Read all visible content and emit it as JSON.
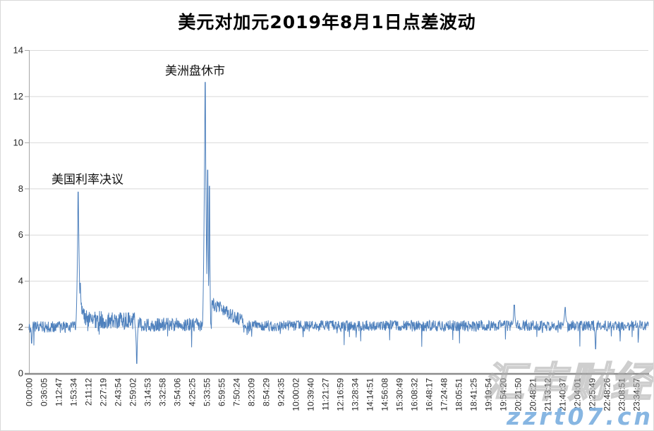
{
  "page": {
    "background": "#ffffff",
    "border_color": "#d9d9d9"
  },
  "chart": {
    "title": "美元对加元2019年8月1日点差波动",
    "annotations": [
      {
        "id": "rate-decision",
        "text": "美国利率决议"
      },
      {
        "id": "us-session-close",
        "text": "美洲盘休市"
      }
    ],
    "colors": {
      "line": "#4f81bd",
      "grid": "#d9d9d9",
      "x_axis": "#8c8c8c",
      "y_axis": "#a6a6a6",
      "tick_label": "#262626",
      "watermark_blue": "#7db0e0"
    }
  },
  "watermarks": {
    "chinese": "汇丰财经",
    "site": "zzrt07.cn"
  },
  "chart_data": {
    "type": "line",
    "title": "美元对加元2019年8月1日点差波动",
    "xlabel": "",
    "ylabel": "",
    "ylim": [
      0,
      14
    ],
    "y_ticks": [
      0,
      2,
      4,
      6,
      8,
      10,
      12,
      14
    ],
    "grid": "horizontal-only",
    "legend": "none",
    "x_ticks": [
      "0:00:00",
      "0:36:05",
      "1:12:47",
      "1:53:34",
      "2:11:12",
      "2:27:19",
      "2:43:54",
      "2:59:02",
      "3:14:53",
      "3:32:58",
      "3:54:06",
      "4:25:25",
      "5:33:55",
      "6:59:55",
      "7:50:24",
      "8:23:09",
      "8:54:29",
      "9:24:35",
      "10:00:02",
      "10:39:40",
      "11:21:27",
      "12:16:59",
      "13:28:34",
      "14:14:51",
      "14:56:08",
      "15:30:49",
      "16:08:32",
      "16:48:17",
      "17:24:48",
      "18:05:51",
      "18:41:25",
      "19:19:54",
      "19:54:20",
      "20:21:50",
      "20:48:21",
      "21:13:12",
      "21:40:37",
      "22:04:01",
      "22:25:49",
      "22:48:26",
      "23:08:51",
      "23:34:57"
    ],
    "series": [
      {
        "name": "点差",
        "color": "#4f81bd"
      }
    ],
    "key_points": [
      {
        "x_time": "1:53",
        "value": 7.85,
        "note": "美国利率决议 spike"
      },
      {
        "x_time": "2:59",
        "value": 0.4,
        "note": "brief dip"
      },
      {
        "x_time": "5:33",
        "value": 12.6,
        "note": "美洲盘休市 main spike"
      },
      {
        "x_time": "5:36",
        "value": 8.8,
        "note": "secondary spike"
      },
      {
        "x_time": "5:38",
        "value": 8.1,
        "note": "tertiary spike"
      },
      {
        "x_time": "20:21",
        "value": 2.95,
        "note": "minor bump"
      },
      {
        "x_time": "22:04",
        "value": 2.85,
        "note": "minor bump"
      },
      {
        "x_time": "baseline",
        "value": 2.0,
        "note": "typical spread ~1.8-2.3 all day"
      }
    ],
    "baseline_segments": [
      {
        "from": 0.0,
        "to": 0.079,
        "mean_start": 2.0,
        "mean_end": 2.0,
        "band": 0.5,
        "dip_prob": 0.02,
        "dip_depth": 0.5
      },
      {
        "from": 0.079,
        "to": 0.09,
        "mean_start": 3.2,
        "mean_end": 2.6,
        "band": 0.7,
        "dip_prob": 0.02,
        "dip_depth": 0.4
      },
      {
        "from": 0.09,
        "to": 0.173,
        "mean_start": 2.35,
        "mean_end": 2.25,
        "band": 0.75,
        "dip_prob": 0.03,
        "dip_depth": 0.55
      },
      {
        "from": 0.173,
        "to": 0.28,
        "mean_start": 2.1,
        "mean_end": 2.1,
        "band": 0.6,
        "dip_prob": 0.03,
        "dip_depth": 0.5
      },
      {
        "from": 0.28,
        "to": 0.295,
        "mean_start": 2.3,
        "mean_end": 2.3,
        "band": 0.7,
        "dip_prob": 0.02,
        "dip_depth": 0.4
      },
      {
        "from": 0.295,
        "to": 0.35,
        "mean_start": 3.0,
        "mean_end": 2.15,
        "band": 0.6,
        "dip_prob": 0.02,
        "dip_depth": 0.4
      },
      {
        "from": 0.35,
        "to": 1.001,
        "mean_start": 2.05,
        "mean_end": 2.05,
        "band": 0.48,
        "dip_prob": 0.025,
        "dip_depth": 0.45
      }
    ],
    "spikes": [
      {
        "at": 0.0797,
        "value": 7.85,
        "width": 0.0042,
        "direction": "up"
      },
      {
        "at": 0.083,
        "value": 3.9,
        "width": 0.004,
        "direction": "up"
      },
      {
        "at": 0.2845,
        "value": 12.6,
        "width": 0.0045,
        "direction": "up"
      },
      {
        "at": 0.2885,
        "value": 8.8,
        "width": 0.0028,
        "direction": "up"
      },
      {
        "at": 0.2915,
        "value": 8.1,
        "width": 0.0022,
        "direction": "up"
      },
      {
        "at": 0.7835,
        "value": 2.95,
        "width": 0.0035,
        "direction": "up"
      },
      {
        "at": 0.8656,
        "value": 2.85,
        "width": 0.004,
        "direction": "up"
      },
      {
        "at": 0.0045,
        "value": 1.3,
        "width": 0.002,
        "direction": "down"
      },
      {
        "at": 0.174,
        "value": 0.42,
        "width": 0.0025,
        "direction": "down"
      },
      {
        "at": 0.9146,
        "value": 1.05,
        "width": 0.002,
        "direction": "down"
      }
    ],
    "noise_seed": 20190801
  }
}
